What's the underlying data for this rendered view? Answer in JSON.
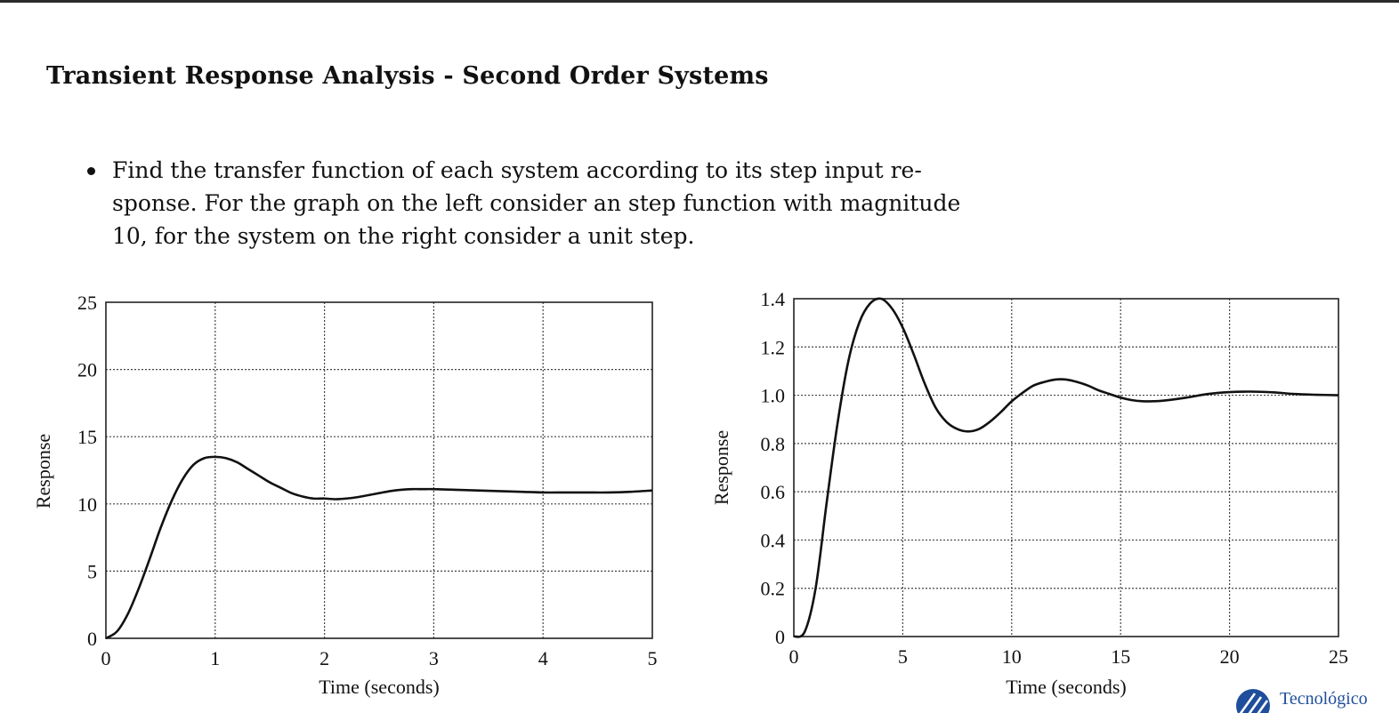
{
  "slide": {
    "title": "Transient Response Analysis - Second Order Systems",
    "bullet_lines": [
      "Find the transfer function of each system according to its step input re-",
      "sponse. For the graph on the left consider an step function with magnitude",
      "10, for the system on the right consider a unit step."
    ]
  },
  "logo": {
    "text": "Tecnológico",
    "icon": "tec-stripes-logo-icon",
    "color": "#1f4e9c"
  },
  "chart_data": [
    {
      "type": "line",
      "xlabel": "Time (seconds)",
      "ylabel": "Response",
      "xlim": [
        0,
        5
      ],
      "ylim": [
        0,
        25
      ],
      "xticks": [
        0,
        1,
        2,
        3,
        4,
        5
      ],
      "yticks": [
        0,
        5,
        10,
        15,
        20,
        25
      ],
      "grid": true,
      "series": [
        {
          "x": [
            0,
            0.1,
            0.2,
            0.3,
            0.4,
            0.5,
            0.6,
            0.7,
            0.8,
            0.9,
            1.0,
            1.1,
            1.2,
            1.3,
            1.4,
            1.5,
            1.6,
            1.7,
            1.8,
            1.9,
            2.0,
            2.1,
            2.2,
            2.3,
            2.4,
            2.5,
            2.6,
            2.7,
            2.8,
            2.9,
            3.0,
            3.2,
            3.4,
            3.6,
            3.8,
            4.0,
            4.2,
            4.4,
            4.6,
            4.8,
            5.0
          ],
          "y": [
            0,
            0.5,
            1.8,
            3.7,
            5.9,
            8.2,
            10.2,
            11.8,
            12.9,
            13.4,
            13.5,
            13.4,
            13.1,
            12.6,
            12.1,
            11.6,
            11.2,
            10.8,
            10.55,
            10.4,
            10.4,
            10.35,
            10.4,
            10.5,
            10.65,
            10.8,
            10.95,
            11.05,
            11.1,
            11.1,
            11.1,
            11.05,
            11.0,
            10.95,
            10.9,
            10.85,
            10.85,
            10.85,
            10.85,
            10.9,
            11.0
          ]
        }
      ]
    },
    {
      "type": "line",
      "xlabel": "Time (seconds)",
      "ylabel": "Response",
      "xlim": [
        0,
        25
      ],
      "ylim": [
        0,
        1.4
      ],
      "xticks": [
        0,
        5,
        10,
        15,
        20,
        25
      ],
      "yticks": [
        "0",
        "0.2",
        "0.4",
        "0.6",
        "0.8",
        "1.0",
        "1.2",
        "1.4"
      ],
      "grid": true,
      "series": [
        {
          "x": [
            0,
            0.5,
            1,
            1.5,
            2,
            2.5,
            3,
            3.5,
            4,
            4.5,
            5,
            5.5,
            6,
            6.5,
            7,
            7.5,
            8,
            8.5,
            9,
            9.5,
            10,
            10.5,
            11,
            11.5,
            12,
            12.5,
            13,
            13.5,
            14,
            14.5,
            15,
            15.5,
            16,
            16.5,
            17,
            18,
            19,
            20,
            21,
            22,
            23,
            24,
            25
          ],
          "y": [
            0,
            0.02,
            0.2,
            0.55,
            0.88,
            1.14,
            1.3,
            1.38,
            1.4,
            1.36,
            1.28,
            1.17,
            1.05,
            0.95,
            0.89,
            0.86,
            0.85,
            0.86,
            0.89,
            0.93,
            0.975,
            1.01,
            1.04,
            1.055,
            1.065,
            1.065,
            1.055,
            1.04,
            1.02,
            1.005,
            0.99,
            0.98,
            0.975,
            0.975,
            0.978,
            0.99,
            1.005,
            1.013,
            1.015,
            1.012,
            1.005,
            1.002,
            1.0
          ]
        }
      ]
    }
  ]
}
